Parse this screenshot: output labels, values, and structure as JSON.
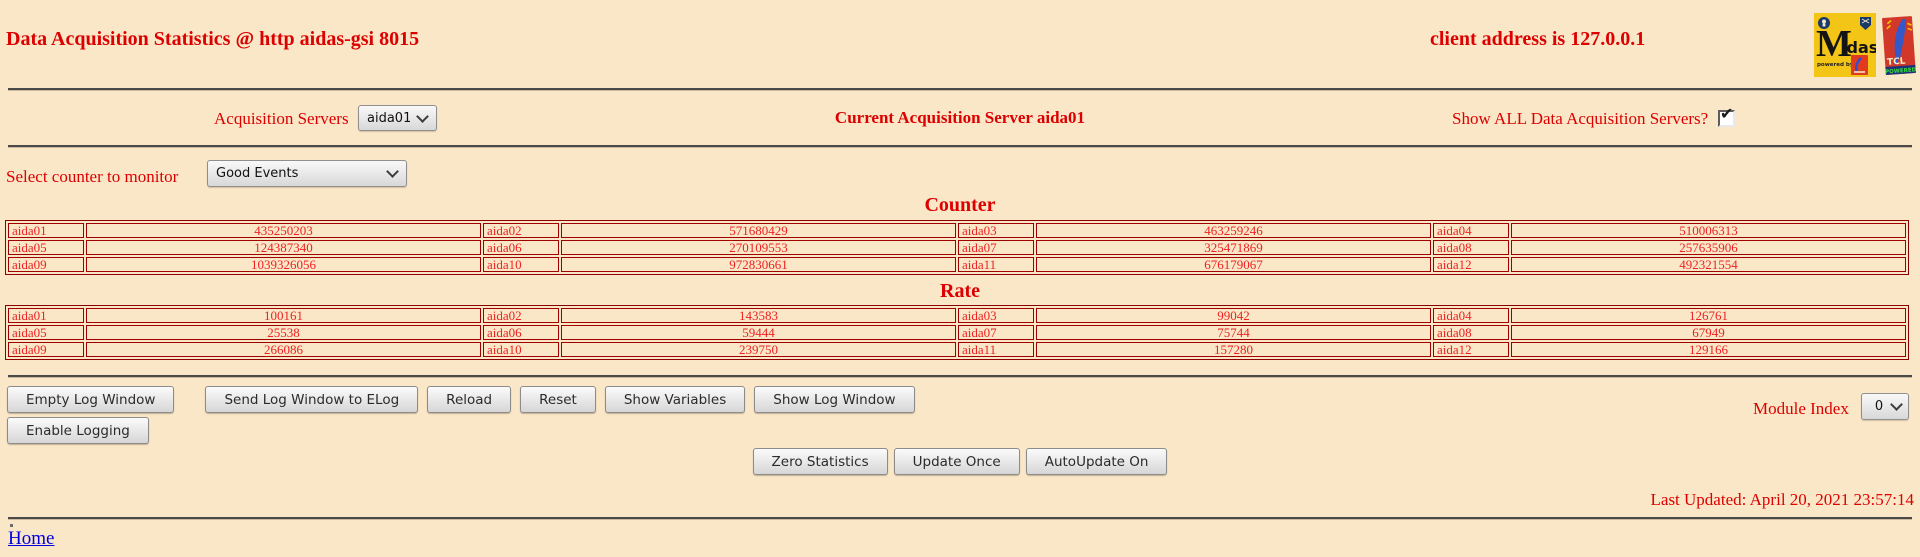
{
  "header": {
    "title": "Data Acquisition Statistics @ http aidas-gsi 8015",
    "client_address": "client address is 127.0.0.1",
    "logos": {
      "midas_m": "M",
      "midas_rest": "idas",
      "powered_by": "powered by",
      "tcl": "TCL",
      "powered": "POWERED"
    }
  },
  "server_row": {
    "label": "Acquisition Servers",
    "selected": "aida01",
    "current": "Current Acquisition Server aida01",
    "show_all_label": "Show ALL Data Acquisition Servers?",
    "show_all_checked": true,
    "checkmark": "✔"
  },
  "counter_row": {
    "label": "Select counter to monitor",
    "selected": "Good Events"
  },
  "counter_table": {
    "title": "Counter",
    "rows": [
      [
        {
          "label": "aida01",
          "value": "435250203"
        },
        {
          "label": "aida02",
          "value": "571680429"
        },
        {
          "label": "aida03",
          "value": "463259246"
        },
        {
          "label": "aida04",
          "value": "510006313"
        }
      ],
      [
        {
          "label": "aida05",
          "value": "124387340"
        },
        {
          "label": "aida06",
          "value": "270109553"
        },
        {
          "label": "aida07",
          "value": "325471869"
        },
        {
          "label": "aida08",
          "value": "257635906"
        }
      ],
      [
        {
          "label": "aida09",
          "value": "1039326056"
        },
        {
          "label": "aida10",
          "value": "972830661"
        },
        {
          "label": "aida11",
          "value": "676179067"
        },
        {
          "label": "aida12",
          "value": "492321554"
        }
      ]
    ]
  },
  "rate_table": {
    "title": "Rate",
    "rows": [
      [
        {
          "label": "aida01",
          "value": "100161"
        },
        {
          "label": "aida02",
          "value": "143583"
        },
        {
          "label": "aida03",
          "value": "99042"
        },
        {
          "label": "aida04",
          "value": "126761"
        }
      ],
      [
        {
          "label": "aida05",
          "value": "25538"
        },
        {
          "label": "aida06",
          "value": "59444"
        },
        {
          "label": "aida07",
          "value": "75744"
        },
        {
          "label": "aida08",
          "value": "67949"
        }
      ],
      [
        {
          "label": "aida09",
          "value": "266086"
        },
        {
          "label": "aida10",
          "value": "239750"
        },
        {
          "label": "aida11",
          "value": "157280"
        },
        {
          "label": "aida12",
          "value": "129166"
        }
      ]
    ]
  },
  "log_controls": {
    "row1": [
      "Empty Log Window",
      "Send Log Window to ELog",
      "Reload",
      "Reset",
      "Show Variables",
      "Show Log Window"
    ],
    "row2": [
      "Enable Logging"
    ],
    "module_index_label": "Module Index",
    "module_index_selected": "0"
  },
  "update_controls": [
    "Zero Statistics",
    "Update Once",
    "AutoUpdate On"
  ],
  "last_updated": "Last Updated: April 20, 2021 23:57:14",
  "footer": {
    "home_link": "Home"
  },
  "colors": {
    "background": "#fae7c8",
    "heading_red": "#dd0000",
    "cell_red": "#ee2222",
    "table_border": "#a00000",
    "link_blue": "#0000e0",
    "midas_gold": "#f3c517",
    "tcl_red": "#d2382a"
  }
}
